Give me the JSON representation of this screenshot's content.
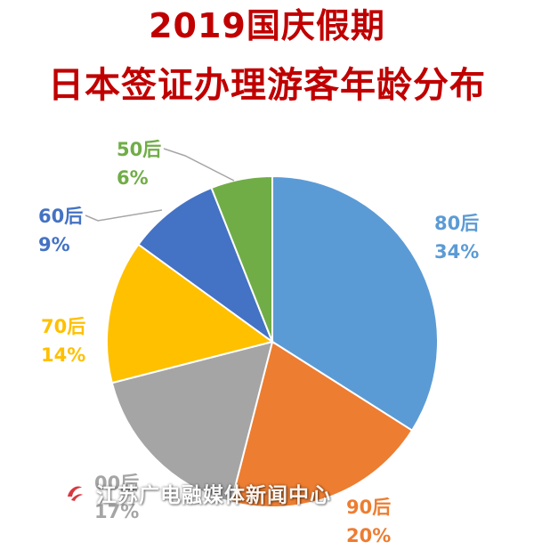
{
  "chart_data": {
    "type": "pie",
    "title": "2019国庆假期",
    "subtitle": "日本签证办理游客年龄分布",
    "slices": [
      {
        "label": "80后",
        "value": 34,
        "value_label": "34%",
        "color": "#5b9bd5"
      },
      {
        "label": "90后",
        "value": 20,
        "value_label": "20%",
        "color": "#ed7d31"
      },
      {
        "label": "00后",
        "value": 17,
        "value_label": "17%",
        "color": "#a5a5a5"
      },
      {
        "label": "70后",
        "value": 14,
        "value_label": "14%",
        "color": "#ffc000"
      },
      {
        "label": "60后",
        "value": 9,
        "value_label": "9%",
        "color": "#4472c4"
      },
      {
        "label": "50后",
        "value": 6,
        "value_label": "6%",
        "color": "#70ad47"
      }
    ],
    "start_angle": "12 o'clock",
    "direction": "clockwise",
    "legend": "none"
  },
  "watermark": {
    "text": "江苏广电融媒体新闻中心"
  }
}
